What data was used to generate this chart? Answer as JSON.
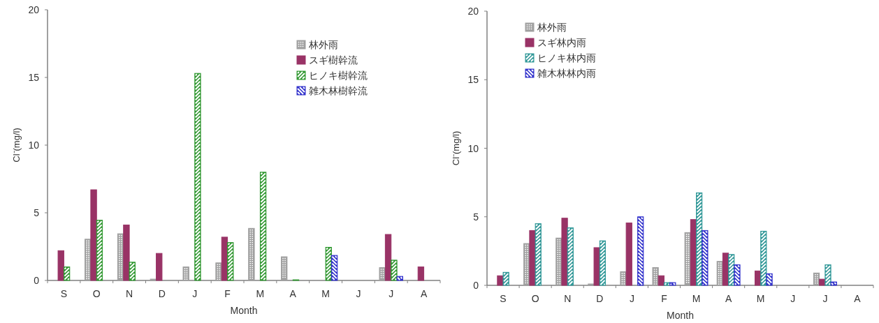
{
  "chart_data": [
    {
      "type": "bar",
      "ylabel": "Cl⁻(mg/l)",
      "xlabel": "Month",
      "categories": [
        "S",
        "O",
        "N",
        "D",
        "J",
        "F",
        "M",
        "A",
        "M",
        "J",
        "J",
        "A"
      ],
      "ylim": [
        0,
        20
      ],
      "yticks": [
        0,
        5,
        10,
        15,
        20
      ],
      "legend": "top right",
      "grid": false,
      "series": [
        {
          "name": "林外雨",
          "color": "#a0a0a0",
          "values": [
            null,
            3.05,
            3.45,
            0.1,
            1.0,
            1.3,
            3.85,
            1.75,
            null,
            null,
            0.95,
            null
          ]
        },
        {
          "name": "スギ樹幹流",
          "color": "#993366",
          "values": [
            2.2,
            6.7,
            4.1,
            2.0,
            null,
            3.2,
            null,
            null,
            null,
            null,
            3.4,
            1.0
          ]
        },
        {
          "name": "ヒノキ樹幹流",
          "color": "#339933",
          "values": [
            1.0,
            4.45,
            1.35,
            null,
            15.3,
            2.8,
            8.0,
            0.05,
            2.45,
            null,
            1.5,
            null
          ]
        },
        {
          "name": "雑木林樹幹流",
          "color": "#3333cc",
          "values": [
            null,
            null,
            null,
            null,
            null,
            null,
            null,
            null,
            1.85,
            null,
            0.3,
            null
          ]
        }
      ]
    },
    {
      "type": "bar",
      "ylabel": "Cl⁻(mg/l)",
      "xlabel": "Month",
      "categories": [
        "S",
        "O",
        "N",
        "D",
        "J",
        "F",
        "M",
        "A",
        "M",
        "J",
        "J",
        "A"
      ],
      "ylim": [
        0,
        20
      ],
      "yticks": [
        0,
        5,
        10,
        15,
        20
      ],
      "legend": "top left",
      "grid": false,
      "series": [
        {
          "name": "林外雨",
          "color": "#a0a0a0",
          "values": [
            null,
            3.05,
            3.45,
            0.1,
            1.0,
            1.3,
            3.85,
            1.75,
            null,
            null,
            0.9,
            null
          ]
        },
        {
          "name": "スギ林内雨",
          "color": "#993366",
          "values": [
            0.7,
            4.0,
            4.9,
            2.75,
            4.55,
            0.7,
            4.8,
            2.35,
            1.05,
            null,
            0.45,
            null
          ]
        },
        {
          "name": "ヒノキ林内雨",
          "color": "#339999",
          "values": [
            0.95,
            4.5,
            4.2,
            3.25,
            null,
            0.2,
            6.75,
            2.25,
            3.95,
            null,
            1.5,
            null
          ]
        },
        {
          "name": "雑木林林内雨",
          "color": "#3333cc",
          "values": [
            null,
            null,
            null,
            null,
            5.0,
            0.2,
            4.0,
            1.5,
            0.85,
            null,
            0.25,
            null
          ]
        }
      ]
    }
  ]
}
